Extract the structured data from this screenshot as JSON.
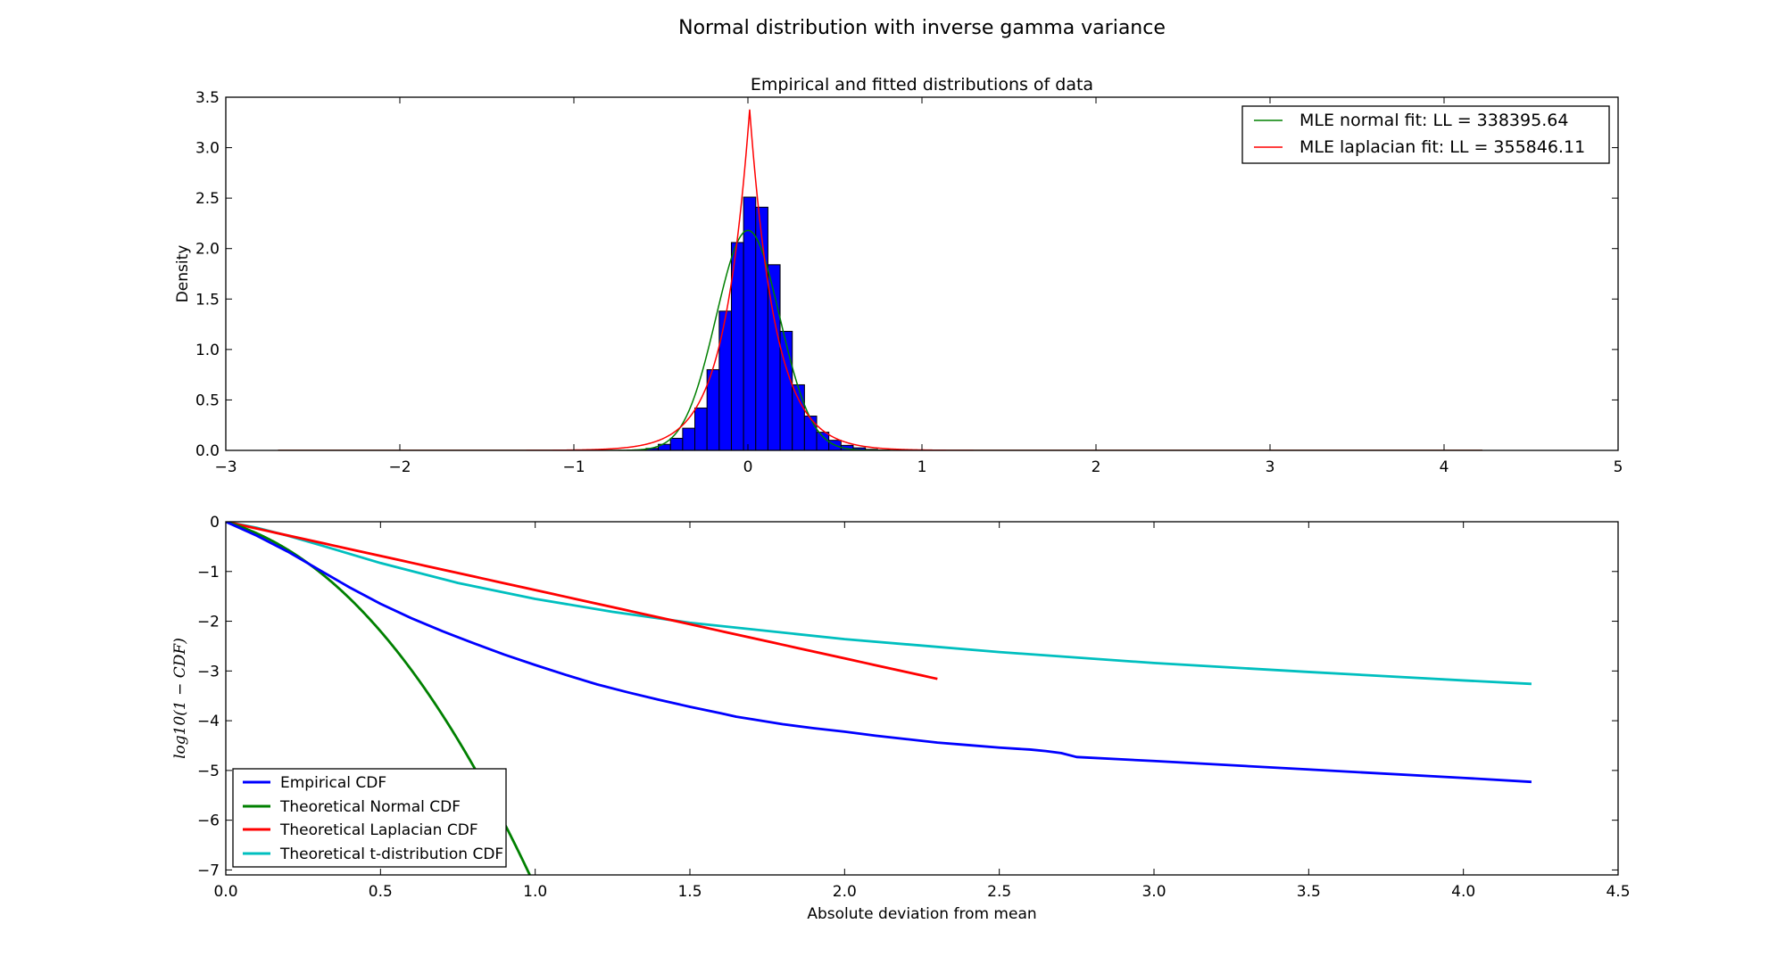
{
  "figure": {
    "suptitle": "Normal distribution with inverse gamma variance"
  },
  "chart_data": [
    {
      "type": "histogram",
      "title": "Empirical and fitted distributions of data",
      "xlabel": "",
      "ylabel": "Density",
      "xlim": [
        -3,
        5
      ],
      "ylim": [
        0,
        3.5
      ],
      "xticks": [
        "−3",
        "−2",
        "−1",
        "0",
        "1",
        "2",
        "3",
        "4",
        "5"
      ],
      "yticks": [
        "0.0",
        "0.5",
        "1.0",
        "1.5",
        "2.0",
        "2.5",
        "3.0",
        "3.5"
      ],
      "grid": false,
      "legend_position": "top-right",
      "histogram": {
        "color": "#0000ff",
        "bin_width": 0.07,
        "bins_start": -0.655,
        "values": [
          0.005,
          0.02,
          0.06,
          0.12,
          0.22,
          0.42,
          0.8,
          1.38,
          2.06,
          2.51,
          2.41,
          1.84,
          1.18,
          0.65,
          0.34,
          0.18,
          0.1,
          0.05,
          0.025,
          0.01,
          0.004
        ]
      },
      "series": [
        {
          "name": "MLE normal fit: LL = 338395.64",
          "color": "#008000",
          "kind": "normal",
          "mu": 0.0,
          "sigma": 0.183,
          "x_range": [
            -2.7,
            4.22
          ]
        },
        {
          "name": "MLE laplacian fit: LL = 355846.11",
          "color": "#ff0000",
          "kind": "laplace",
          "mu": 0.01,
          "b": 0.148,
          "x_range": [
            -2.7,
            4.22
          ]
        }
      ]
    },
    {
      "type": "line",
      "title": "",
      "xlabel": "Absolute deviation from mean",
      "ylabel": "log10(1 − CDF)",
      "xlim": [
        0,
        4.5
      ],
      "ylim": [
        -7.1,
        0
      ],
      "xticks": [
        "0.0",
        "0.5",
        "1.0",
        "1.5",
        "2.0",
        "2.5",
        "3.0",
        "3.5",
        "4.0",
        "4.5"
      ],
      "yticks": [
        "0",
        "−1",
        "−2",
        "−3",
        "−4",
        "−5",
        "−6",
        "−7"
      ],
      "grid": false,
      "legend_position": "bottom-left",
      "series": [
        {
          "name": "Empirical CDF",
          "color": "#0000ff",
          "x": [
            0,
            0.1,
            0.2,
            0.3,
            0.4,
            0.5,
            0.6,
            0.7,
            0.8,
            0.9,
            1.0,
            1.1,
            1.2,
            1.3,
            1.4,
            1.5,
            1.6,
            1.65,
            1.7,
            1.8,
            1.9,
            2.0,
            2.1,
            2.2,
            2.3,
            2.4,
            2.5,
            2.6,
            2.65,
            2.7,
            2.75,
            3.0,
            3.5,
            4.0,
            4.22
          ],
          "y": [
            0,
            -0.28,
            -0.6,
            -0.96,
            -1.32,
            -1.65,
            -1.94,
            -2.2,
            -2.44,
            -2.67,
            -2.88,
            -3.08,
            -3.27,
            -3.43,
            -3.58,
            -3.72,
            -3.85,
            -3.92,
            -3.97,
            -4.07,
            -4.15,
            -4.22,
            -4.3,
            -4.37,
            -4.44,
            -4.49,
            -4.54,
            -4.58,
            -4.61,
            -4.65,
            -4.73,
            -4.81,
            -4.98,
            -5.15,
            -5.23
          ]
        },
        {
          "name": "Theoretical Normal CDF",
          "color": "#008000",
          "kind": "normal_tail",
          "sigma": 0.183,
          "x_range": [
            0,
            0.99
          ]
        },
        {
          "name": "Theoretical Laplacian CDF",
          "color": "#ff0000",
          "kind": "laplace_tail",
          "b": 0.3162,
          "x_range": [
            0,
            2.3
          ]
        },
        {
          "name": "Theoretical t-distribution CDF",
          "color": "#00bfbf",
          "x": [
            0,
            0.1,
            0.2,
            0.3,
            0.5,
            0.75,
            1.0,
            1.25,
            1.5,
            2.0,
            2.5,
            3.0,
            3.5,
            4.0,
            4.22
          ],
          "y": [
            0,
            -0.12,
            -0.28,
            -0.46,
            -0.83,
            -1.23,
            -1.55,
            -1.81,
            -2.03,
            -2.36,
            -2.62,
            -2.84,
            -3.02,
            -3.19,
            -3.26
          ]
        }
      ]
    }
  ]
}
